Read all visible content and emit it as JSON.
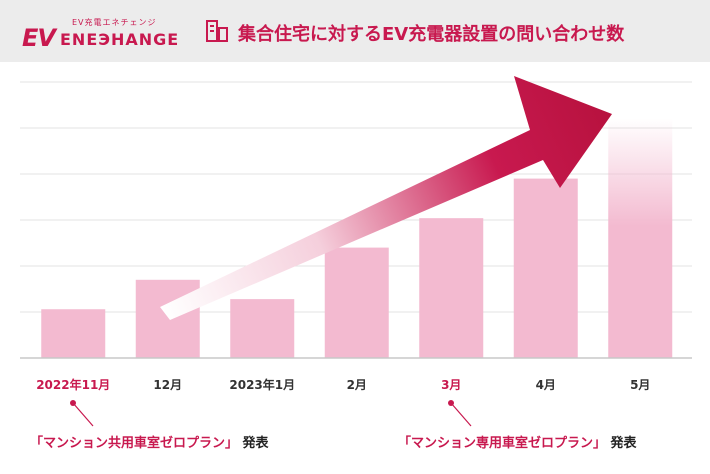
{
  "brand": {
    "mark": "EV",
    "name": "ENEЭHANGE",
    "tagline": "EV充電エネチェンジ"
  },
  "chart_data": {
    "type": "bar",
    "title": "集合住宅に対するEV充電器設置の問い合わせ数",
    "categories": [
      "2022年11月",
      "12月",
      "2023年1月",
      "2月",
      "3月",
      "4月",
      "5月"
    ],
    "values": [
      53,
      85,
      64,
      120,
      152,
      195,
      260
    ],
    "highlighted_categories": [
      "2022年11月",
      "3月"
    ],
    "ylim": [
      0,
      300
    ],
    "grid": true,
    "y_axis_labels_shown": false,
    "xlabel": "",
    "ylabel": "",
    "colors": {
      "bar": "#f3bad0",
      "accent": "#c8194f",
      "grid": "#e3e3e3",
      "header_bg": "#ececec"
    }
  },
  "annotations": [
    {
      "category": "2022年11月",
      "open": "「",
      "name": "マンション共用車室ゼロプラン",
      "close": "」",
      "suffix": "発表"
    },
    {
      "category": "3月",
      "open": "「",
      "name": "マンション専用車室ゼロプラン",
      "close": "」",
      "suffix": "発表"
    }
  ]
}
